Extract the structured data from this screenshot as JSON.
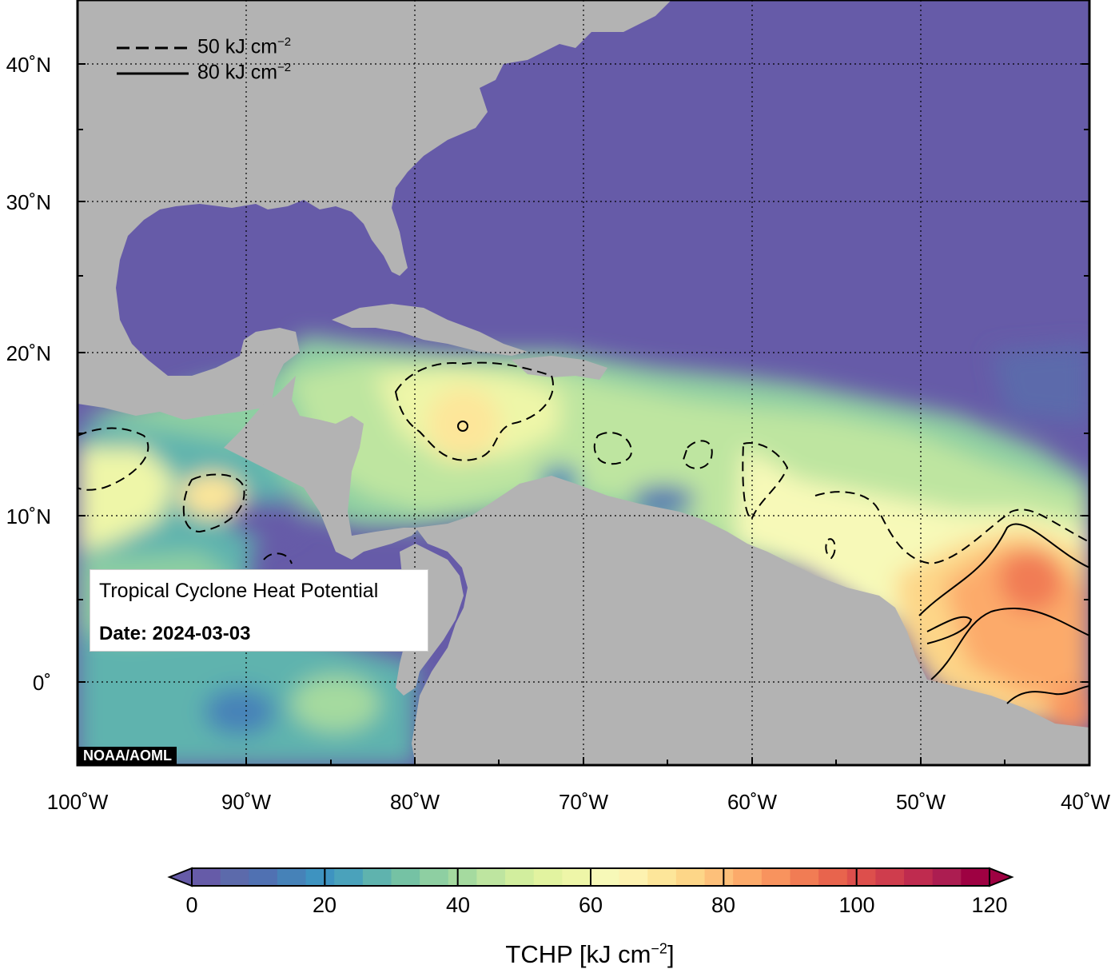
{
  "map": {
    "legend": {
      "dashed": {
        "text": "50 kJ cm",
        "exp": "−2"
      },
      "solid": {
        "text": "80 kJ cm",
        "exp": "−2"
      }
    },
    "info": {
      "title": "Tropical Cyclone Heat Potential",
      "date": "Date: 2024-03-03"
    },
    "credit": "NOAA/AOML",
    "lat_labels": [
      "40˚N",
      "30˚N",
      "20˚N",
      "10˚N",
      "0˚"
    ],
    "lon_labels": [
      "100˚W",
      "90˚W",
      "80˚W",
      "70˚W",
      "60˚W",
      "50˚W",
      "40˚W"
    ],
    "lat_range": [
      -5,
      44
    ],
    "lon_range": [
      -100,
      -40
    ],
    "colors": {
      "ocean_cold": "#665ba8",
      "land": "#b3b3b3",
      "warm_peak": "#e8604a"
    }
  },
  "colorbar": {
    "ticks": [
      "0",
      "20",
      "40",
      "60",
      "80",
      "100",
      "120"
    ],
    "range": [
      0,
      120
    ],
    "title": "TCHP [kJ cm",
    "title_exp": "−2",
    "title_end": "]",
    "colors": [
      "#665ba8",
      "#5c6aab",
      "#5071b2",
      "#4682b8",
      "#3e93c0",
      "#4aa2bb",
      "#5fb3ae",
      "#75c2a4",
      "#8ecfa2",
      "#a5da9f",
      "#bee5a0",
      "#d2ee9e",
      "#e2f3a0",
      "#eef6a8",
      "#f7f9b8",
      "#fdf2b0",
      "#fde69a",
      "#fdd688",
      "#fdc07a",
      "#fcaa6a",
      "#f8935e",
      "#f17c54",
      "#e8644d",
      "#dd4f4c",
      "#cf3d4d",
      "#bf2b4f",
      "#ac1d51",
      "#9e0142"
    ]
  }
}
